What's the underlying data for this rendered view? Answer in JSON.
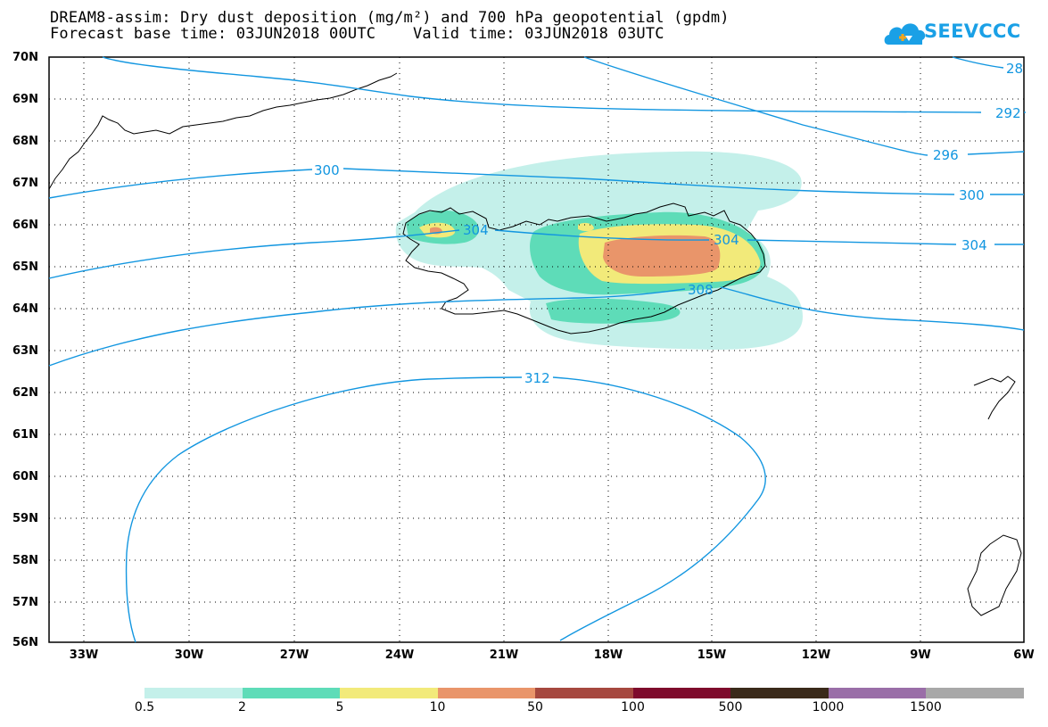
{
  "title": {
    "line1": "DREAM8-assim: Dry dust deposition (mg/m²) and 700 hPa geopotential (gpdm)",
    "line2": "Forecast base time: 03JUN2018 00UTC    Valid time: 03JUN2018 03UTC"
  },
  "logo": {
    "text": "SEEVCCC",
    "icon": "cloud-icon"
  },
  "map": {
    "lat_labels": [
      "70N",
      "69N",
      "68N",
      "67N",
      "66N",
      "65N",
      "64N",
      "63N",
      "62N",
      "61N",
      "60N",
      "59N",
      "58N",
      "57N",
      "56N"
    ],
    "lon_labels": [
      "33W",
      "30W",
      "27W",
      "24W",
      "21W",
      "18W",
      "15W",
      "12W",
      "9W",
      "6W"
    ],
    "contour_labels": [
      "28",
      "292",
      "296",
      "300",
      "300",
      "304",
      "304",
      "304",
      "308",
      "312"
    ]
  },
  "colorbar": {
    "labels": [
      "0.5",
      "2",
      "5",
      "10",
      "50",
      "100",
      "500",
      "1000",
      "1500"
    ],
    "colors": [
      "#c4f0ea",
      "#5edcb8",
      "#f2ea7a",
      "#e9956a",
      "#a6483f",
      "#7e0a2c",
      "#3a2a1a",
      "#9a6ea8",
      "#a8a8a8"
    ]
  },
  "colors": {
    "contour": "#1296e0",
    "land": "#000000"
  }
}
